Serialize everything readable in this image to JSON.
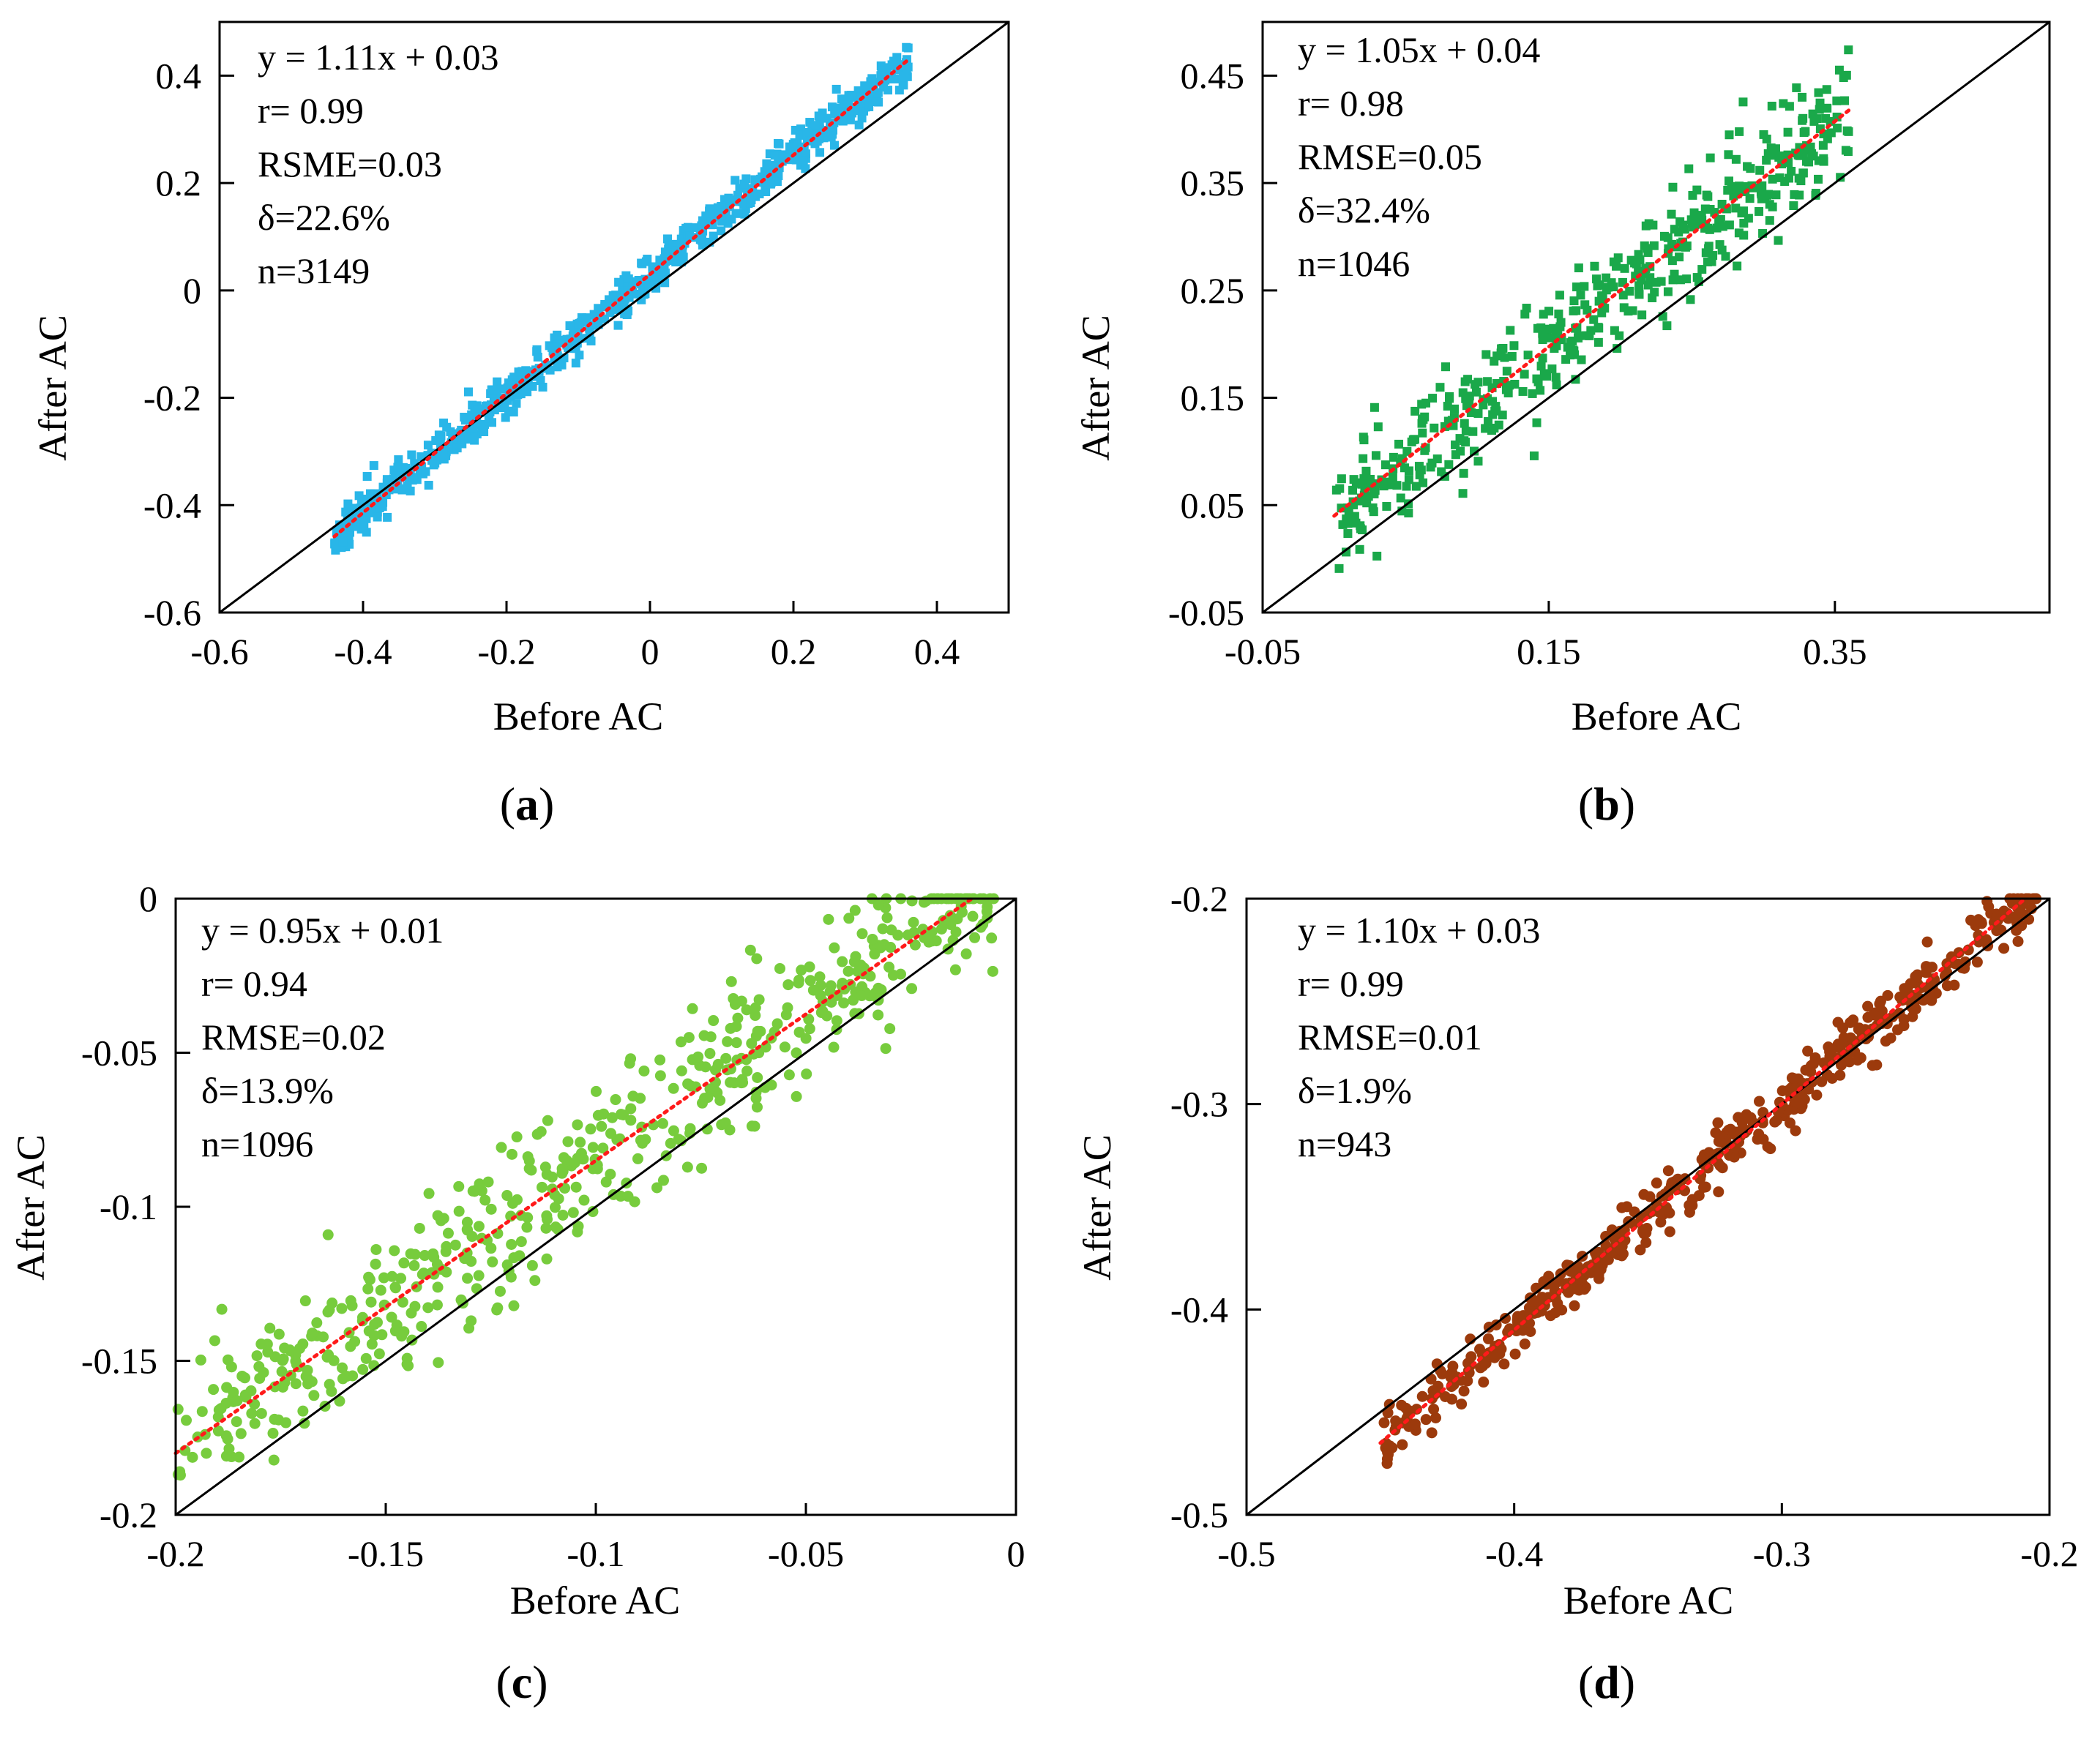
{
  "chart_data": [
    {
      "type": "scatter",
      "panel": "a",
      "caption_letter": "a",
      "xlabel": "Before AC",
      "ylabel": "After AC",
      "xlim": [
        -0.6,
        0.5
      ],
      "ylim": [
        -0.6,
        0.5
      ],
      "xticks": [
        -0.6,
        -0.4,
        -0.2,
        0,
        0.2,
        0.4
      ],
      "xtick_labels": [
        "-0.6",
        "-0.4",
        "-0.2",
        "0",
        "0.2",
        "0.4"
      ],
      "yticks": [
        -0.6,
        -0.4,
        -0.2,
        0,
        0.2,
        0.4
      ],
      "ytick_labels": [
        "-0.6",
        "-0.4",
        "-0.2",
        "0",
        "0.2",
        "0.4"
      ],
      "point_color": "#29b6e8",
      "point_shape": "square",
      "stats": [
        "y = 1.11x + 0.03",
        "r= 0.99",
        "RSME=0.03",
        "δ=22.6%",
        "n=3149"
      ],
      "fit": {
        "slope": 1.11,
        "intercept": 0.03,
        "x_range": [
          -0.44,
          0.36
        ]
      },
      "series": [
        {
          "name": "Before vs After AC",
          "x_range": [
            -0.44,
            0.36
          ],
          "slope": 1.11,
          "intercept": 0.03,
          "spread": 0.02,
          "n_drawn": 700,
          "seed": 11
        }
      ]
    },
    {
      "type": "scatter",
      "panel": "b",
      "caption_letter": "b",
      "xlabel": "Before AC",
      "ylabel": "After AC",
      "xlim": [
        -0.05,
        0.5
      ],
      "ylim": [
        -0.05,
        0.5
      ],
      "xticks": [
        -0.05,
        0.15,
        0.35
      ],
      "xtick_labels": [
        "-0.05",
        "0.15",
        "0.35"
      ],
      "yticks": [
        -0.05,
        0.05,
        0.15,
        0.25,
        0.35,
        0.45
      ],
      "ytick_labels": [
        "-0.05",
        "0.05",
        "0.15",
        "0.25",
        "0.35",
        "0.45"
      ],
      "point_color": "#1aa84a",
      "point_shape": "square",
      "stats": [
        "y = 1.05x + 0.04",
        "r= 0.98",
        "RMSE=0.05",
        "δ=32.4%",
        "n=1046"
      ],
      "fit": {
        "slope": 1.05,
        "intercept": 0.04,
        "x_range": [
          0.0,
          0.36
        ]
      },
      "series": [
        {
          "name": "Before vs After AC",
          "x_range": [
            0.0,
            0.36
          ],
          "slope": 1.05,
          "intercept": 0.04,
          "spread": 0.025,
          "n_drawn": 500,
          "seed": 23
        }
      ]
    },
    {
      "type": "scatter",
      "panel": "c",
      "caption_letter": "c",
      "xlabel": "Before AC",
      "ylabel": "After AC",
      "xlim": [
        -0.2,
        0
      ],
      "ylim": [
        -0.2,
        0
      ],
      "xticks": [
        -0.2,
        -0.15,
        -0.1,
        -0.05,
        0
      ],
      "xtick_labels": [
        "-0.2",
        "-0.15",
        "-0.1",
        "-0.05",
        "0"
      ],
      "yticks": [
        -0.2,
        -0.15,
        -0.1,
        -0.05,
        0
      ],
      "ytick_labels": [
        "-0.2",
        "-0.15",
        "-0.1",
        "-0.05",
        "0"
      ],
      "point_color": "#77cc3d",
      "point_shape": "circle",
      "stats": [
        "y = 0.95x + 0.01",
        "r= 0.94",
        "RMSE=0.02",
        "δ=13.9%",
        "n=1096"
      ],
      "fit": {
        "slope": 0.95,
        "intercept": 0.01,
        "x_range": [
          -0.2,
          -0.01
        ]
      },
      "series": [
        {
          "name": "Before vs After AC",
          "x_range": [
            -0.2,
            -0.005
          ],
          "slope": 0.95,
          "intercept": 0.01,
          "spread": 0.012,
          "n_drawn": 550,
          "seed": 37
        }
      ]
    },
    {
      "type": "scatter",
      "panel": "d",
      "caption_letter": "d",
      "xlabel": "Before AC",
      "ylabel": "After AC",
      "xlim": [
        -0.5,
        -0.2
      ],
      "ylim": [
        -0.5,
        -0.2
      ],
      "xticks": [
        -0.5,
        -0.4,
        -0.3,
        -0.2
      ],
      "xtick_labels": [
        "-0.5",
        "-0.4",
        "-0.3",
        "-0.2"
      ],
      "yticks": [
        -0.5,
        -0.4,
        -0.3,
        -0.2
      ],
      "ytick_labels": [
        "-0.5",
        "-0.4",
        "-0.3",
        "-0.2"
      ],
      "point_color": "#9c3a0c",
      "point_shape": "circle",
      "stats": [
        "y = 1.10x + 0.03",
        "r= 0.99",
        "RMSE=0.01",
        "δ=1.9%",
        "n=943"
      ],
      "fit": {
        "slope": 1.1,
        "intercept": 0.03,
        "x_range": [
          -0.45,
          -0.21
        ]
      },
      "series": [
        {
          "name": "Before vs After AC",
          "x_range": [
            -0.45,
            -0.205
          ],
          "slope": 1.1,
          "intercept": 0.03,
          "spread": 0.007,
          "n_drawn": 500,
          "seed": 53
        }
      ]
    }
  ]
}
